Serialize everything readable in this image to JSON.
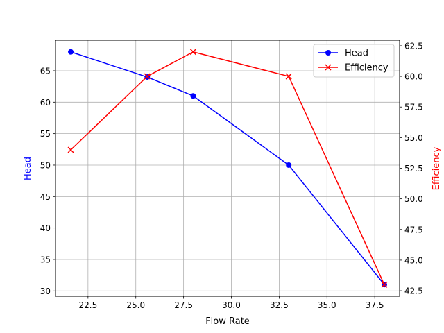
{
  "chart_data": {
    "type": "line",
    "title": "",
    "x": [
      21.6,
      25.6,
      28.0,
      33.0,
      38.0
    ],
    "xlabel": "Flow Rate",
    "xlim": [
      20.8,
      38.8
    ],
    "xticks": [
      "22.5",
      "25.0",
      "27.5",
      "30.0",
      "32.5",
      "35.0",
      "37.5"
    ],
    "xtick_values": [
      22.5,
      25.0,
      27.5,
      30.0,
      32.5,
      35.0,
      37.5
    ],
    "grid": true,
    "legend_position": "top-right",
    "series": [
      {
        "name": "Head",
        "axis": "left",
        "color": "#0000ff",
        "marker": "circle",
        "values": [
          68,
          64,
          61,
          50,
          31
        ]
      },
      {
        "name": "Efficiency",
        "axis": "right",
        "color": "#ff0000",
        "marker": "x",
        "values": [
          54,
          60,
          62,
          60,
          43
        ]
      }
    ],
    "ylabel_left": "Head",
    "ylim_left": [
      29.15,
      69.85
    ],
    "yticks_left": [
      "30",
      "35",
      "40",
      "45",
      "50",
      "55",
      "60",
      "65"
    ],
    "ytick_values_left": [
      30,
      35,
      40,
      45,
      50,
      55,
      60,
      65
    ],
    "ylabel_right": "Efficiency",
    "ylim_right": [
      42.05,
      62.95
    ],
    "yticks_right": [
      "42.5",
      "45.0",
      "47.5",
      "50.0",
      "52.5",
      "55.0",
      "57.5",
      "60.0",
      "62.5"
    ],
    "ytick_values_right": [
      42.5,
      45.0,
      47.5,
      50.0,
      52.5,
      55.0,
      57.5,
      60.0,
      62.5
    ]
  }
}
